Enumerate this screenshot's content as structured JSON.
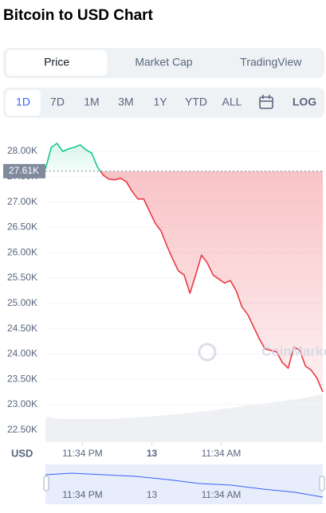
{
  "header": {
    "title": "Bitcoin to USD Chart"
  },
  "view_tabs": [
    "Price",
    "Market Cap",
    "TradingView"
  ],
  "selected_tab": 0,
  "range_buttons": [
    "1D",
    "7D",
    "1M",
    "3M",
    "1Y",
    "YTD",
    "ALL"
  ],
  "selected_range": 0,
  "scale_button": "LOG",
  "chart_data": {
    "type": "line",
    "currency_label": "USD",
    "watermark": "CoinMarketCap",
    "values": [
      27650,
      28080,
      28160,
      28000,
      28050,
      28080,
      28130,
      28030,
      27970,
      27690,
      27530,
      27450,
      27440,
      27470,
      27400,
      27210,
      27060,
      27060,
      26820,
      26580,
      26430,
      26140,
      25880,
      25640,
      25560,
      25200,
      25560,
      25950,
      25800,
      25560,
      25480,
      25400,
      25450,
      25250,
      24930,
      24780,
      24540,
      24300,
      24100,
      24070,
      24040,
      23830,
      23720,
      24140,
      24070,
      23760,
      23680,
      23520,
      23250
    ],
    "colors": {
      "up": "#16c784",
      "down": "#ea3943"
    },
    "reference_value": 27610,
    "reference_label": "27.61K",
    "xlim": [
      0,
      48
    ],
    "xticks": [
      {
        "value": 6,
        "label": "11:34 PM"
      },
      {
        "value": 18,
        "label": "13"
      },
      {
        "value": 30,
        "label": "11:34 AM"
      }
    ],
    "ylim": [
      22260,
      28630
    ],
    "yticks": [
      {
        "value": 22500,
        "label": "22.50K"
      },
      {
        "value": 23000,
        "label": "23.00K"
      },
      {
        "value": 23500,
        "label": "23.50K"
      },
      {
        "value": 24000,
        "label": "24.00K"
      },
      {
        "value": 24500,
        "label": "24.50K"
      },
      {
        "value": 25000,
        "label": "25.00K"
      },
      {
        "value": 25500,
        "label": "25.50K"
      },
      {
        "value": 26000,
        "label": "26.00K"
      },
      {
        "value": 26500,
        "label": "26.50K"
      },
      {
        "value": 27000,
        "label": "27.00K"
      },
      {
        "value": 27500,
        "label": "27.50K"
      },
      {
        "value": 28000,
        "label": "28.00K"
      }
    ]
  }
}
